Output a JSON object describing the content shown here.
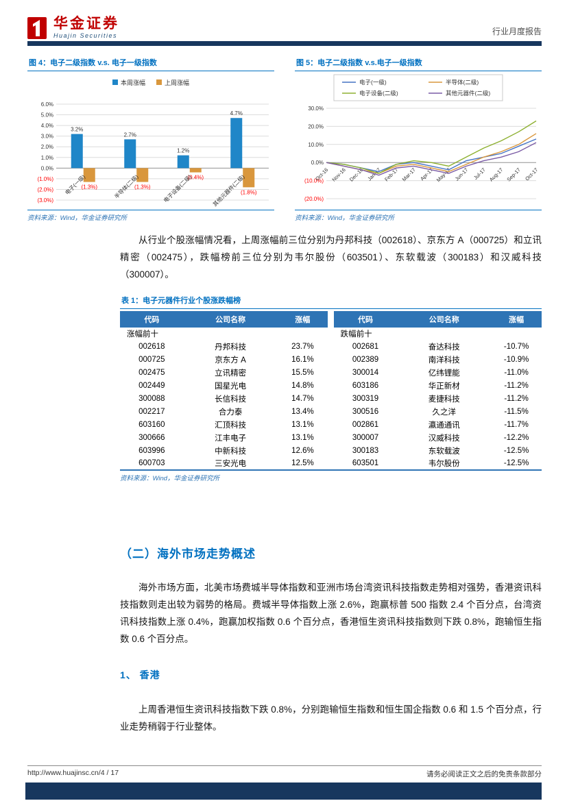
{
  "header": {
    "logo_cn": "华金证券",
    "logo_en": "Huajin Securities",
    "report_type": "行业月度报告"
  },
  "colors": {
    "navy": "#17375E",
    "title_blue": "#0070C0",
    "table_header_blue": "#2E74B5",
    "negative_red": "#FF0000",
    "logo_red": "#C00000",
    "bar_blue": "#1F86C8",
    "bar_orange": "#D9973D"
  },
  "figures": {
    "fig4": {
      "title": "图 4：电子二级指数 v.s. 电子一级指数",
      "source": "资料来源：Wind，华金证券研究所"
    },
    "fig5": {
      "title": "图 5：电子二级指数 v.s.电子一级指数",
      "source": "资料来源：Wind，华金证券研究所"
    }
  },
  "chart_data": [
    {
      "id": "fig4",
      "type": "bar",
      "title": "电子二级指数 v.s. 电子一级指数",
      "categories": [
        "电子(一级)",
        "半导体(二级)",
        "电子设备(二级)",
        "其他元器件(二级)"
      ],
      "series": [
        {
          "name": "本周涨幅",
          "color": "#1F86C8",
          "values": [
            3.2,
            2.7,
            1.2,
            4.7
          ],
          "labels": [
            "3.2%",
            "2.7%",
            "1.2%",
            "4.7%"
          ]
        },
        {
          "name": "上周涨幅",
          "color": "#D9973D",
          "values": [
            -1.3,
            -1.3,
            -0.4,
            -1.8
          ],
          "labels": [
            "(1.3%)",
            "(1.3%)",
            "(0.4%)",
            "(1.8%)"
          ]
        }
      ],
      "ylim": [
        -3,
        6
      ],
      "ytick_values": [
        6,
        5,
        4,
        3,
        2,
        1,
        0,
        -1,
        -2,
        -3
      ],
      "ytick_labels": [
        "6.0%",
        "5.0%",
        "4.0%",
        "3.0%",
        "2.0%",
        "1.0%",
        "0.0%",
        "(1.0%)",
        "(2.0%)",
        "(3.0%)"
      ],
      "grid": true,
      "legend_position": "top"
    },
    {
      "id": "fig5",
      "type": "line",
      "title": "电子二级指数 v.s.电子一级指数",
      "x": [
        "Oct-16",
        "Nov-16",
        "Dec-16",
        "Jan-17",
        "Feb-17",
        "Mar-17",
        "Apr-17",
        "May-17",
        "Jun-17",
        "Jul-17",
        "Aug-17",
        "Sep-17",
        "Oct-17"
      ],
      "series": [
        {
          "name": "电子(一级)",
          "color": "#4472C4",
          "values": [
            0,
            -1,
            -3,
            -5,
            -1,
            0,
            -2,
            -4,
            1,
            3,
            5,
            9,
            13
          ]
        },
        {
          "name": "半导体(二级)",
          "color": "#D9973D",
          "values": [
            0,
            -2,
            -4,
            -6,
            -2,
            -1,
            -3,
            -5,
            -1,
            3,
            6,
            10,
            16
          ]
        },
        {
          "name": "电子设备(二级)",
          "color": "#8DB030",
          "values": [
            0,
            -1,
            -3,
            -6,
            -1,
            1,
            0,
            -2,
            3,
            8,
            12,
            17,
            23
          ]
        },
        {
          "name": "其他元器件(二级)",
          "color": "#7A5BA5",
          "values": [
            0,
            -2,
            -4,
            -7,
            -3,
            -2,
            -4,
            -6,
            -2,
            1,
            3,
            6,
            11
          ]
        }
      ],
      "ylim": [
        -20,
        30
      ],
      "ytick_values": [
        30,
        20,
        10,
        0,
        -10,
        -20
      ],
      "ytick_labels": [
        "30.0%",
        "20.0%",
        "10.0%",
        "0.0%",
        "(10.0%)",
        "(20.0%)"
      ],
      "grid": true,
      "legend_position": "top"
    }
  ],
  "paragraphs": {
    "p1": "从行业个股涨幅情况看，上周涨幅前三位分别为丹邦科技（002618）、京东方 A（000725）和立讯精密（002475），跌幅榜前三位分别为韦尔股份（603501）、东软载波（300183）和汉威科技（300007）。",
    "p2": "海外市场方面，北美市场费城半导体指数和亚洲市场台湾资讯科技指数走势相对强势，香港资讯科技指数则走出较为弱势的格局。费城半导体指数上涨 2.6%，跑赢标普 500 指数 2.4 个百分点，台湾资讯科技指数上涨 0.4%，跑赢加权指数 0.6 个百分点，香港恒生资讯科技指数则下跌 0.8%，跑输恒生指数 0.6 个百分点。",
    "p3": "上周香港恒生资讯科技指数下跌 0.8%，分别跑输恒生指数和恒生国企指数 0.6 和 1.5 个百分点，行业走势稍弱于行业整体。"
  },
  "sections": {
    "s2_title": "（二）海外市场走势概述",
    "s2_1_title": "1、 香港"
  },
  "table1": {
    "title": "表 1：电子元器件行业个股涨跌幅榜",
    "headers": [
      "代码",
      "公司名称",
      "涨幅",
      "代码",
      "公司名称",
      "涨幅"
    ],
    "group_left": "涨幅前十",
    "group_right": "跌幅前十",
    "rows": [
      [
        "002618",
        "丹邦科技",
        "23.7%",
        "002681",
        "奋达科技",
        "-10.7%"
      ],
      [
        "000725",
        "京东方 A",
        "16.1%",
        "002389",
        "南洋科技",
        "-10.9%"
      ],
      [
        "002475",
        "立讯精密",
        "15.5%",
        "300014",
        "亿纬锂能",
        "-11.0%"
      ],
      [
        "002449",
        "国星光电",
        "14.8%",
        "603186",
        "华正新材",
        "-11.2%"
      ],
      [
        "300088",
        "长信科技",
        "14.7%",
        "300319",
        "麦捷科技",
        "-11.2%"
      ],
      [
        "002217",
        "合力泰",
        "13.4%",
        "300516",
        "久之洋",
        "-11.5%"
      ],
      [
        "603160",
        "汇顶科技",
        "13.1%",
        "002861",
        "瀛通通讯",
        "-11.7%"
      ],
      [
        "300666",
        "江丰电子",
        "13.1%",
        "300007",
        "汉威科技",
        "-12.2%"
      ],
      [
        "603996",
        "中新科技",
        "12.6%",
        "300183",
        "东软载波",
        "-12.5%"
      ],
      [
        "600703",
        "三安光电",
        "12.5%",
        "603501",
        "韦尔股份",
        "-12.5%"
      ]
    ],
    "source": "资料来源：Wind，华金证券研究所"
  },
  "footer": {
    "url": "http://www.huajinsc.cn/4 / 17",
    "disclaimer": "请务必阅读正文之后的免责条款部分"
  }
}
